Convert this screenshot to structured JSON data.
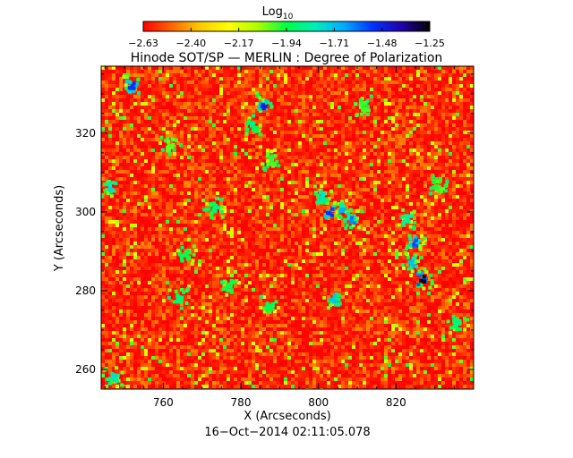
{
  "chart_data": {
    "type": "heatmap",
    "title": "Hinode SOT/SP — MERLIN : Degree of Polarization",
    "colorbar": {
      "label": "Log",
      "label_sub": "10",
      "ticks": [
        "−2.63",
        "−2.40",
        "−2.17",
        "−1.94",
        "−1.71",
        "−1.48",
        "−1.25"
      ],
      "range": [
        -2.63,
        -1.25
      ],
      "colormap": [
        "#ff0000",
        "#ff6600",
        "#ffcc00",
        "#ffff00",
        "#aaff00",
        "#00ff44",
        "#00eebb",
        "#00aaff",
        "#0033ff",
        "#2200aa",
        "#000000"
      ]
    },
    "xlabel": "X (Arcseconds)",
    "ylabel": "Y (Arcseconds)",
    "xlim": [
      744,
      840
    ],
    "ylim": [
      255,
      337
    ],
    "xticks": [
      760,
      780,
      800,
      820
    ],
    "yticks": [
      260,
      280,
      300,
      320
    ],
    "field_value_range": [
      -2.63,
      -2.4
    ],
    "features": [
      {
        "x": 752,
        "y": 332,
        "value": -1.55
      },
      {
        "x": 786,
        "y": 327,
        "value": -1.5
      },
      {
        "x": 783,
        "y": 322,
        "value": -1.9
      },
      {
        "x": 803,
        "y": 300,
        "value": -1.55
      },
      {
        "x": 806,
        "y": 301,
        "value": -1.7
      },
      {
        "x": 809,
        "y": 298,
        "value": -1.65
      },
      {
        "x": 801,
        "y": 304,
        "value": -1.8
      },
      {
        "x": 827,
        "y": 283,
        "value": -1.3
      },
      {
        "x": 825,
        "y": 292,
        "value": -1.6
      },
      {
        "x": 823,
        "y": 298,
        "value": -1.85
      },
      {
        "x": 824,
        "y": 287,
        "value": -1.75
      },
      {
        "x": 746,
        "y": 306,
        "value": -1.8
      },
      {
        "x": 804,
        "y": 278,
        "value": -1.75
      },
      {
        "x": 764,
        "y": 278,
        "value": -1.9
      },
      {
        "x": 777,
        "y": 281,
        "value": -1.95
      },
      {
        "x": 766,
        "y": 289,
        "value": -1.95
      },
      {
        "x": 787,
        "y": 276,
        "value": -1.95
      },
      {
        "x": 773,
        "y": 301,
        "value": -1.9
      },
      {
        "x": 747,
        "y": 258,
        "value": -1.8
      },
      {
        "x": 836,
        "y": 272,
        "value": -1.9
      },
      {
        "x": 788,
        "y": 313,
        "value": -2.0
      },
      {
        "x": 812,
        "y": 327,
        "value": -2.0
      },
      {
        "x": 831,
        "y": 307,
        "value": -2.0
      },
      {
        "x": 762,
        "y": 317,
        "value": -2.05
      }
    ],
    "grid": false,
    "legend": "colorbar-top"
  },
  "footer": {
    "timestamp": "16−Oct−2014 02:11:05.078"
  }
}
